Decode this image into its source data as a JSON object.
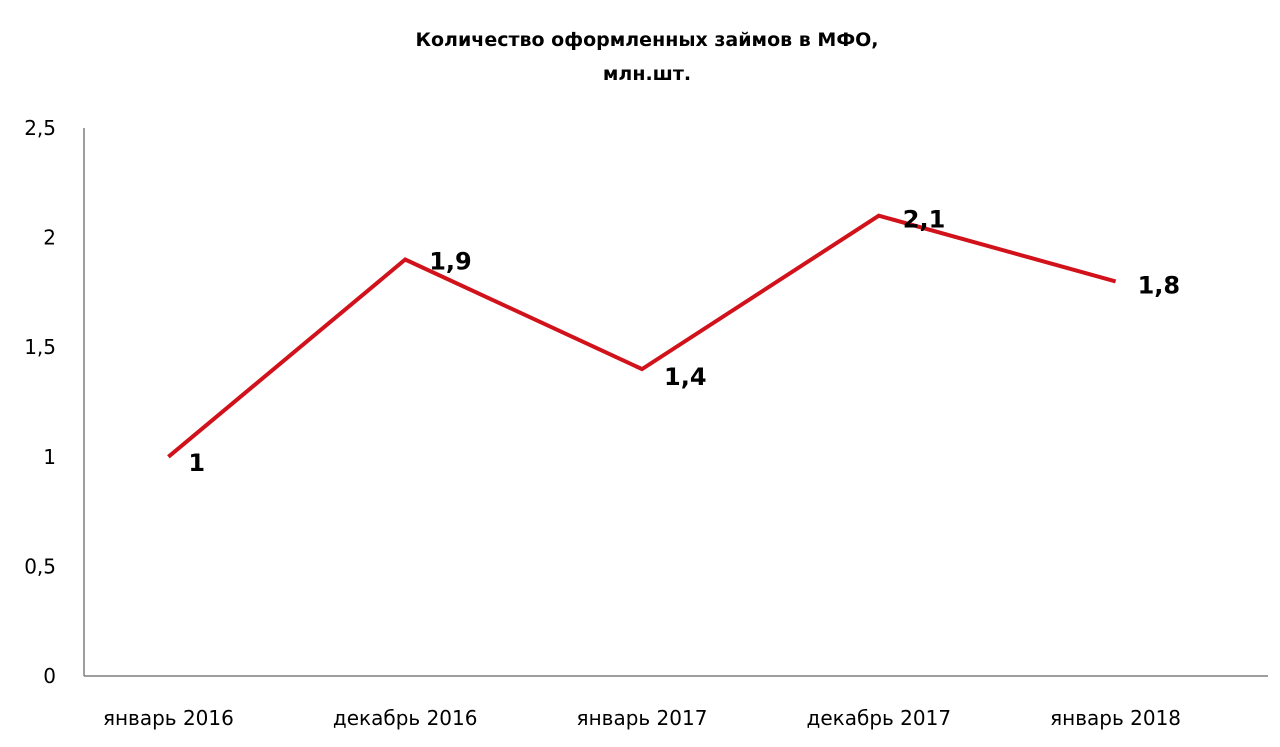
{
  "chart_data": {
    "type": "line",
    "title": "Количество оформленных займов в МФО,",
    "subtitle": "млн.шт.",
    "xlabel": "",
    "ylabel": "",
    "categories": [
      "январь 2016",
      "декабрь 2016",
      "январь 2017",
      "декабрь 2017",
      "январь 2018"
    ],
    "series": [
      {
        "values": [
          1,
          1.9,
          1.4,
          2.1,
          1.8
        ],
        "color": "#d1121b"
      }
    ],
    "data_labels": [
      "1",
      "1,9",
      "1,4",
      "2,1",
      "1,8"
    ],
    "y_ticks": [
      0,
      0.5,
      1,
      1.5,
      2,
      2.5
    ],
    "y_tick_labels": [
      "0",
      "0,5",
      "1",
      "1,5",
      "2",
      "2,5"
    ],
    "ylim": [
      0,
      2.5
    ],
    "grid": false,
    "legend": "none",
    "axis_color": "#7f7f7f"
  }
}
